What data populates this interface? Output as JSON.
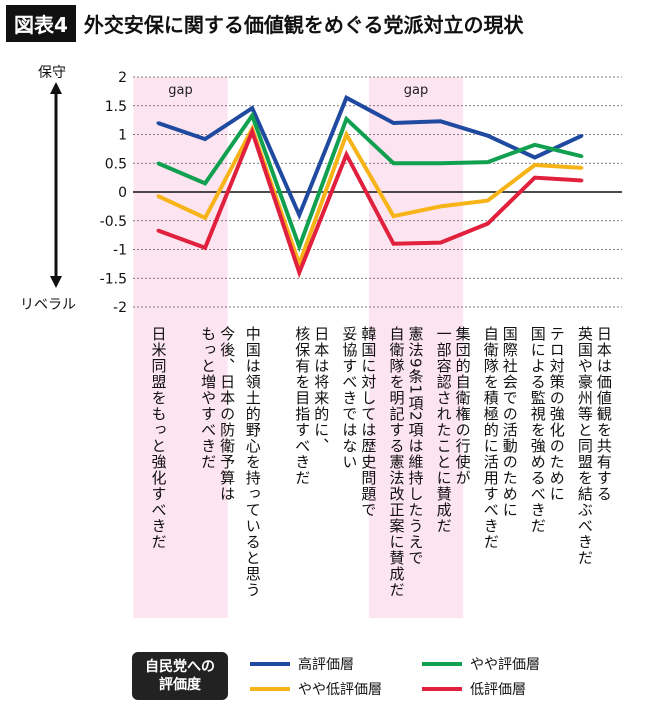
{
  "header": {
    "figure_no": "図表4",
    "title": "外交安保に関する価値観をめぐる党派対立の現状"
  },
  "axis": {
    "top_label": "保守",
    "bottom_label": "リベラル"
  },
  "legend": {
    "title": "自民党への\n評価度"
  },
  "chart_data": {
    "type": "line",
    "title": "外交安保に関する価値観をめぐる党派対立の現状",
    "ylim": [
      -2,
      2
    ],
    "yticks": [
      "2",
      "1.5",
      "1",
      "0.5",
      "0",
      "-0.5",
      "-1",
      "-1.5",
      "-2"
    ],
    "ytick_values": [
      2,
      1.5,
      1,
      0.5,
      0,
      -0.5,
      -1,
      -1.5,
      -2
    ],
    "grid": "dotted horizontal",
    "highlight_label": "gap",
    "highlight_categories": [
      [
        0,
        1
      ],
      [
        5,
        6
      ]
    ],
    "highlight_color": "#fce4f0",
    "categories": [
      "日米同盟をもっと強化すべきだ",
      "今後、日本の防衛予算は\nもっと増やすべきだ",
      "中国は領土的野心を持っていると思う",
      "日本は将来的に、\n核保有を目指すべきだ",
      "韓国に対しては歴史問題で\n妥協すべきではない",
      "憲法9条1項2項は維持したうえで\n自衛隊を明記する憲法改正案に賛成だ",
      "集団的自衛権の行使が\n一部容認されたことに賛成だ",
      "国際社会での活動のために\n自衛隊を積極的に活用すべきだ",
      "テロ対策の強化のために\n国による監視を強めるべきだ",
      "日本は価値観を共有する\n英国や豪州等と同盟を結ぶべきだ"
    ],
    "series": [
      {
        "name": "高評価層",
        "color": "#1f4aa0",
        "values": [
          1.2,
          0.92,
          1.46,
          -0.4,
          1.64,
          1.2,
          1.23,
          0.98,
          0.6,
          0.98
        ]
      },
      {
        "name": "やや評価層",
        "color": "#10a050",
        "values": [
          0.5,
          0.15,
          1.33,
          -0.95,
          1.27,
          0.5,
          0.5,
          0.52,
          0.82,
          0.62
        ]
      },
      {
        "name": "やや低評価層",
        "color": "#f7b418",
        "values": [
          -0.07,
          -0.45,
          1.1,
          -1.25,
          1.0,
          -0.42,
          -0.25,
          -0.15,
          0.47,
          0.42
        ]
      },
      {
        "name": "低評価層",
        "color": "#e0203c",
        "values": [
          -0.67,
          -0.97,
          1.05,
          -1.4,
          0.65,
          -0.9,
          -0.88,
          -0.55,
          0.25,
          0.2
        ]
      }
    ],
    "legend_position": "bottom"
  }
}
